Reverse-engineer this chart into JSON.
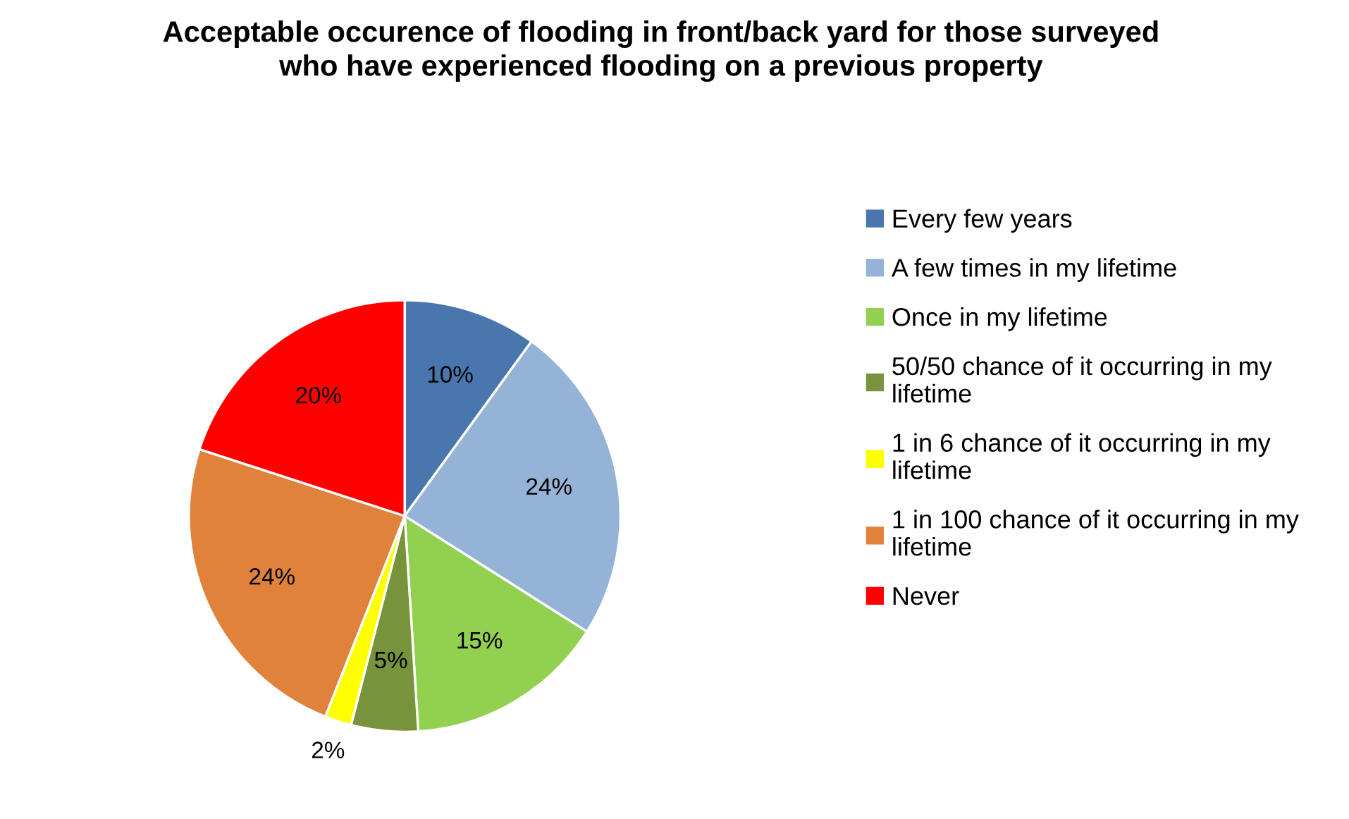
{
  "chart_data": {
    "type": "pie",
    "title": "Acceptable occurence of flooding in front/back yard for those surveyed who have experienced flooding on a previous property",
    "categories": [
      "Every few years",
      "A few times in my lifetime",
      "Once in my lifetime",
      "50/50 chance of it occurring in my lifetime",
      "1 in 6 chance of it occurring in my lifetime",
      "1 in 100 chance of it occurring in my lifetime",
      "Never"
    ],
    "values": [
      10,
      24,
      15,
      5,
      2,
      24,
      20
    ],
    "colors": [
      "#4a76ae",
      "#95b3d7",
      "#92d050",
      "#77933c",
      "#ffff00",
      "#e0823c",
      "#ff0000"
    ],
    "value_labels": [
      "10%",
      "24%",
      "15%",
      "5%",
      "2%",
      "24%",
      "20%"
    ],
    "legend": "right"
  }
}
